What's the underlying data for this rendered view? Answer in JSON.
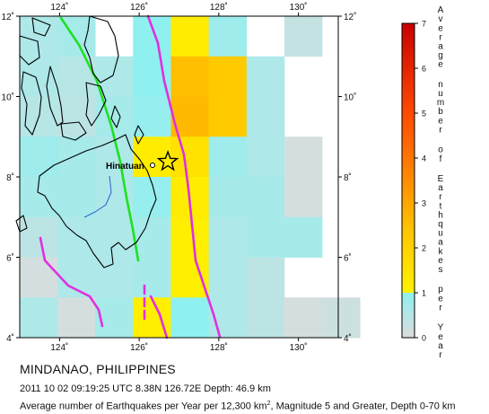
{
  "map": {
    "lon_ticks": [
      "124˚",
      "126˚",
      "128˚",
      "130˚"
    ],
    "lat_ticks": [
      "4˚",
      "6˚",
      "8˚",
      "10˚",
      "12˚"
    ],
    "lon_range": [
      123,
      131
    ],
    "lat_range": [
      4,
      12
    ],
    "location_label": "Hinatuan",
    "event_lon": 126.72,
    "event_lat": 8.38
  },
  "grid": [
    {
      "lat": 11.5,
      "values": [
        0.6,
        0.7,
        null,
        1.0,
        1.2,
        0.8,
        null,
        0.3,
        null
      ]
    },
    {
      "lat": 10.5,
      "values": [
        0.6,
        0.5,
        0.6,
        1.0,
        2.5,
        2.2,
        0.6,
        null,
        null
      ]
    },
    {
      "lat": 9.5,
      "values": [
        0.5,
        0.4,
        0.7,
        0.9,
        2.6,
        2.2,
        0.6,
        null,
        null
      ]
    },
    {
      "lat": 8.5,
      "values": [
        0.8,
        0.7,
        0.6,
        1.2,
        1.5,
        0.8,
        0.6,
        0.1,
        null
      ]
    },
    {
      "lat": 7.5,
      "values": [
        0.7,
        0.7,
        0.6,
        0.9,
        1.2,
        0.7,
        0.7,
        0.1,
        null
      ]
    },
    {
      "lat": 6.5,
      "values": [
        0.4,
        0.6,
        0.6,
        0.7,
        1.1,
        0.6,
        0.7,
        0.7,
        null
      ]
    },
    {
      "lat": 5.5,
      "values": [
        0.1,
        0.6,
        0.6,
        0.7,
        1.1,
        0.6,
        0.4,
        null,
        null
      ]
    },
    {
      "lat": 4.5,
      "values": [
        0.6,
        0.1,
        0.7,
        1.1,
        1.0,
        0.6,
        0.4,
        0.1,
        0.2
      ]
    }
  ],
  "colorbar": {
    "tick_labels": [
      "0",
      "1",
      "2",
      "3",
      "4",
      "5",
      "6",
      "7"
    ],
    "range": [
      0,
      7
    ],
    "title_words": [
      "Average",
      "number",
      "of",
      "Earthquakes",
      "per",
      "Year"
    ],
    "stops": [
      {
        "v": 0,
        "color": "#dcdcdc"
      },
      {
        "v": 1,
        "color": "#8ff0f0"
      },
      {
        "v": 1,
        "color": "#fff200"
      },
      {
        "v": 2.3,
        "color": "#ffc800"
      },
      {
        "v": 3.5,
        "color": "#ff8c00"
      },
      {
        "v": 5,
        "color": "#ff4a00"
      },
      {
        "v": 7,
        "color": "#c80000"
      }
    ]
  },
  "caption": {
    "title": "MINDANAO, PHILIPPINES",
    "event": "2011 10 02 09:19:25 UTC 8.38N 126.72E Depth: 46.9 km",
    "average_prefix": "Average number of Earthquakes per Year per 12,300 km",
    "average_sup": "2",
    "average_suffix": ", Magnitude 5 and Greater, Depth 0-70 km"
  },
  "colors": {
    "fault_magenta": "#e030e0",
    "fault_green": "#20e020",
    "coast": "#000000",
    "river": "#3060d0"
  }
}
